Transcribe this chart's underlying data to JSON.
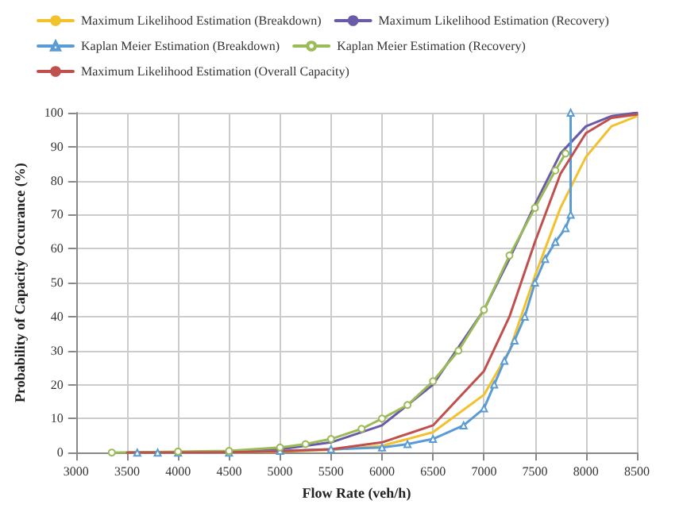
{
  "chart_data": {
    "type": "line",
    "xlabel": "Flow Rate (veh/h)",
    "ylabel": "Probability of Capacity Occurance (%)",
    "xlim": [
      3000,
      8500
    ],
    "xticks": [
      3000,
      3500,
      4000,
      4500,
      5000,
      5500,
      6000,
      6500,
      7000,
      7500,
      8000,
      8500
    ],
    "ylim": [
      0,
      100
    ],
    "yticks": [
      0,
      10,
      20,
      30,
      40,
      50,
      60,
      70,
      80,
      90,
      100
    ],
    "grid": true,
    "legend": "top",
    "series": [
      {
        "name": "Maximum Likelihood Estimation (Breakdown)",
        "color": "#f2c12e",
        "marker": "none",
        "x": [
          3500,
          4500,
          5000,
          5500,
          6000,
          6500,
          7000,
          7250,
          7500,
          7750,
          8000,
          8250,
          8500
        ],
        "values": [
          0,
          0,
          0.3,
          0.8,
          2,
          6,
          17,
          30,
          52,
          72,
          87,
          96,
          99
        ]
      },
      {
        "name": "Maximum Likelihood Estimation (Recovery)",
        "color": "#6a5aa8",
        "marker": "none",
        "x": [
          3500,
          4500,
          5000,
          5500,
          6000,
          6500,
          7000,
          7250,
          7500,
          7750,
          8000,
          8250,
          8500
        ],
        "values": [
          0,
          0.3,
          1,
          3,
          8,
          20,
          42,
          57,
          73,
          88,
          96,
          99,
          100
        ]
      },
      {
        "name": "Kaplan Meier Estimation (Breakdown)",
        "color": "#5b9bd5",
        "marker": "triangle",
        "x": [
          3600,
          3800,
          4000,
          4500,
          5000,
          5500,
          6000,
          6250,
          6500,
          6800,
          7000,
          7100,
          7200,
          7300,
          7400,
          7500,
          7600,
          7700,
          7800,
          7850,
          7850
        ],
        "values": [
          0,
          0,
          0,
          0,
          0.5,
          1,
          1.5,
          2.5,
          4,
          8,
          13,
          20,
          27,
          33,
          40,
          50,
          57,
          62,
          66,
          70,
          100
        ]
      },
      {
        "name": "Kaplan Meier Estimation (Recovery)",
        "color": "#9bbb59",
        "marker": "circle",
        "x": [
          3350,
          4000,
          4500,
          5000,
          5250,
          5500,
          5800,
          6000,
          6250,
          6500,
          6750,
          7000,
          7250,
          7500,
          7700,
          7800
        ],
        "values": [
          0,
          0.3,
          0.5,
          1.5,
          2.5,
          4,
          7,
          10,
          14,
          21,
          30,
          42,
          58,
          72,
          83,
          88
        ]
      },
      {
        "name": "Maximum Likelihood Estimation (Overall Capacity)",
        "color": "#c0504d",
        "marker": "none",
        "x": [
          3500,
          4500,
          5000,
          5500,
          6000,
          6500,
          7000,
          7250,
          7500,
          7750,
          8000,
          8250,
          8500
        ],
        "values": [
          0,
          0.1,
          0.4,
          1,
          3,
          8,
          24,
          40,
          62,
          82,
          94,
          98.5,
          99.5
        ]
      }
    ]
  }
}
